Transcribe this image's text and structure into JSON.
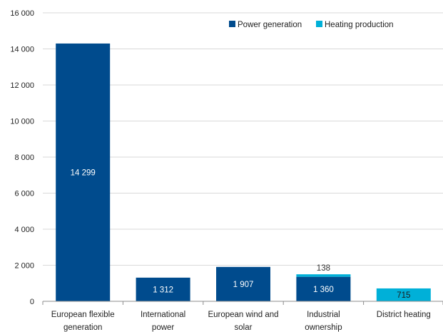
{
  "chart_data": {
    "type": "bar",
    "stacked": true,
    "categories": [
      [
        "European flexible",
        "generation"
      ],
      [
        "International",
        "power"
      ],
      [
        "European wind and",
        "solar"
      ],
      [
        "Industrial",
        "ownership"
      ],
      [
        "District heating"
      ]
    ],
    "series": [
      {
        "name": "Power generation",
        "color": "#004b8d",
        "values": [
          14299,
          1312,
          1907,
          1360,
          0
        ],
        "labels": [
          "14 299",
          "1 312",
          "1 907",
          "1 360",
          ""
        ]
      },
      {
        "name": "Heating production",
        "color": "#00b0d8",
        "values": [
          0,
          0,
          0,
          138,
          715
        ],
        "labels": [
          "",
          "",
          "",
          "138",
          "715"
        ]
      }
    ],
    "yticks": [
      "0",
      "2 000",
      "4 000",
      "6 000",
      "8 000",
      "10 000",
      "12 000",
      "14 000",
      "16 000"
    ],
    "ylim": [
      0,
      16000
    ],
    "grid": true,
    "legend": "top-right"
  }
}
